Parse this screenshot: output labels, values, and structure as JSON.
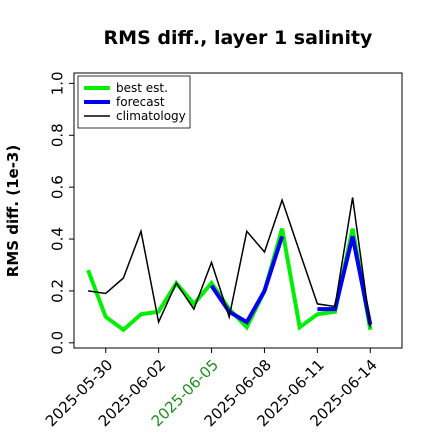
{
  "chart_data": {
    "type": "line",
    "title": "RMS diff., layer 1 salinity",
    "ylabel": "RMS diff. (1e-3)",
    "ylim": [
      -0.02,
      1.04
    ],
    "yticks": [
      "0.0",
      "0.2",
      "0.4",
      "0.6",
      "0.8",
      "1.0"
    ],
    "ytick_values": [
      0.0,
      0.2,
      0.4,
      0.6,
      0.8,
      1.0
    ],
    "xticks": [
      {
        "label": "2025-05-30",
        "day": 0,
        "color": "#000000"
      },
      {
        "label": "2025-06-02",
        "day": 3,
        "color": "#000000"
      },
      {
        "label": "2025-06-05",
        "day": 6,
        "color": "#228B22"
      },
      {
        "label": "2025-06-08",
        "day": 9,
        "color": "#000000"
      },
      {
        "label": "2025-06-11",
        "day": 12,
        "color": "#000000"
      },
      {
        "label": "2025-06-14",
        "day": 15,
        "color": "#000000"
      }
    ],
    "xlim": [
      -1.8,
      16.8
    ],
    "x": [
      -1,
      0,
      1,
      2,
      3,
      4,
      5,
      6,
      7,
      8,
      9,
      10,
      11,
      12,
      13,
      14,
      15
    ],
    "legend_position": "top-left",
    "series": [
      {
        "name": "best est.",
        "color": "#00ee00",
        "width": 4,
        "values": [
          0.28,
          0.1,
          0.05,
          0.11,
          0.12,
          0.23,
          0.15,
          0.23,
          0.13,
          0.06,
          0.2,
          0.44,
          0.06,
          0.11,
          0.12,
          0.44,
          0.05
        ]
      },
      {
        "name": "forecast",
        "color": "#0000ee",
        "width": 4,
        "values": [
          null,
          null,
          null,
          null,
          null,
          null,
          null,
          0.22,
          0.12,
          0.08,
          0.2,
          0.41,
          null,
          0.13,
          0.13,
          0.41,
          0.07
        ]
      },
      {
        "name": "climatology",
        "color": "#000000",
        "width": 1.5,
        "values": [
          0.2,
          0.19,
          0.25,
          0.43,
          0.08,
          0.23,
          0.13,
          0.31,
          0.1,
          0.43,
          0.35,
          0.55,
          0.35,
          0.15,
          0.14,
          0.56,
          0.06
        ]
      }
    ]
  }
}
